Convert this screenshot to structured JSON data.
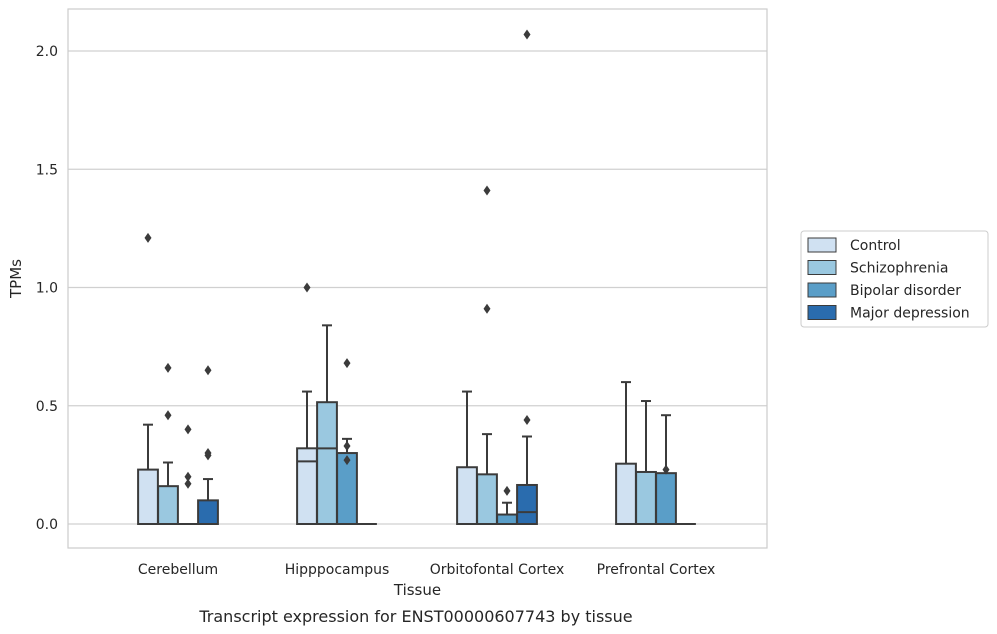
{
  "chart_data": {
    "type": "box",
    "title": "",
    "caption": "Transcript expression for ENST00000607743 by tissue",
    "xlabel": "Tissue",
    "ylabel": "TPMs",
    "ylim": [
      -0.1,
      2.18
    ],
    "yticks": [
      0.0,
      0.5,
      1.0,
      1.5,
      2.0
    ],
    "ytick_labels": [
      "0.0",
      "0.5",
      "1.0",
      "1.5",
      "2.0"
    ],
    "grid": "horizontal",
    "legend_position": "right",
    "categories": [
      "Cerebellum",
      "Hipppocampus",
      "Orbitofontal Cortex",
      "Prefrontal Cortex"
    ],
    "series": [
      {
        "name": "Control",
        "color": "#d0e1f2",
        "boxes": [
          {
            "q1": 0.0,
            "median": 0.0,
            "q3": 0.23,
            "whislo": 0.0,
            "whishi": 0.42,
            "fliers": [
              1.21
            ]
          },
          {
            "q1": 0.0,
            "median": 0.265,
            "q3": 0.32,
            "whislo": 0.0,
            "whishi": 0.56,
            "fliers": [
              1.0
            ]
          },
          {
            "q1": 0.0,
            "median": 0.0,
            "q3": 0.24,
            "whislo": 0.0,
            "whishi": 0.56,
            "fliers": []
          },
          {
            "q1": 0.0,
            "median": 0.0,
            "q3": 0.255,
            "whislo": 0.0,
            "whishi": 0.6,
            "fliers": []
          }
        ]
      },
      {
        "name": "Schizophrenia",
        "color": "#9ac8e0",
        "boxes": [
          {
            "q1": 0.0,
            "median": 0.0,
            "q3": 0.16,
            "whislo": 0.0,
            "whishi": 0.26,
            "fliers": [
              0.46,
              0.66
            ]
          },
          {
            "q1": 0.0,
            "median": 0.32,
            "q3": 0.515,
            "whislo": 0.0,
            "whishi": 0.84,
            "fliers": []
          },
          {
            "q1": 0.0,
            "median": 0.0,
            "q3": 0.21,
            "whislo": 0.0,
            "whishi": 0.38,
            "fliers": [
              0.91,
              1.41
            ]
          },
          {
            "q1": 0.0,
            "median": 0.0,
            "q3": 0.22,
            "whislo": 0.0,
            "whishi": 0.52,
            "fliers": []
          }
        ]
      },
      {
        "name": "Bipolar disorder",
        "color": "#5a9ec8",
        "boxes": [
          {
            "q1": 0.0,
            "median": 0.0,
            "q3": 0.0,
            "whislo": 0.0,
            "whishi": 0.0,
            "fliers": [
              0.17,
              0.2,
              0.4
            ]
          },
          {
            "q1": 0.0,
            "median": 0.0,
            "q3": 0.3,
            "whislo": 0.0,
            "whishi": 0.36,
            "fliers": [
              0.27,
              0.33,
              0.68
            ]
          },
          {
            "q1": 0.0,
            "median": 0.0,
            "q3": 0.04,
            "whislo": 0.0,
            "whishi": 0.09,
            "fliers": [
              0.14
            ]
          },
          {
            "q1": 0.0,
            "median": 0.0,
            "q3": 0.215,
            "whislo": 0.0,
            "whishi": 0.46,
            "fliers": [
              0.23
            ]
          }
        ]
      },
      {
        "name": "Major depression",
        "color": "#2a6cae",
        "boxes": [
          {
            "q1": 0.0,
            "median": 0.0,
            "q3": 0.1,
            "whislo": 0.0,
            "whishi": 0.19,
            "fliers": [
              0.29,
              0.3,
              0.65
            ]
          },
          {
            "q1": 0.0,
            "median": 0.0,
            "q3": 0.0,
            "whislo": 0.0,
            "whishi": 0.0,
            "fliers": []
          },
          {
            "q1": 0.0,
            "median": 0.05,
            "q3": 0.165,
            "whislo": 0.0,
            "whishi": 0.37,
            "fliers": [
              0.44,
              2.07
            ]
          },
          {
            "q1": 0.0,
            "median": 0.0,
            "q3": 0.0,
            "whislo": 0.0,
            "whishi": 0.0,
            "fliers": []
          }
        ]
      }
    ]
  }
}
